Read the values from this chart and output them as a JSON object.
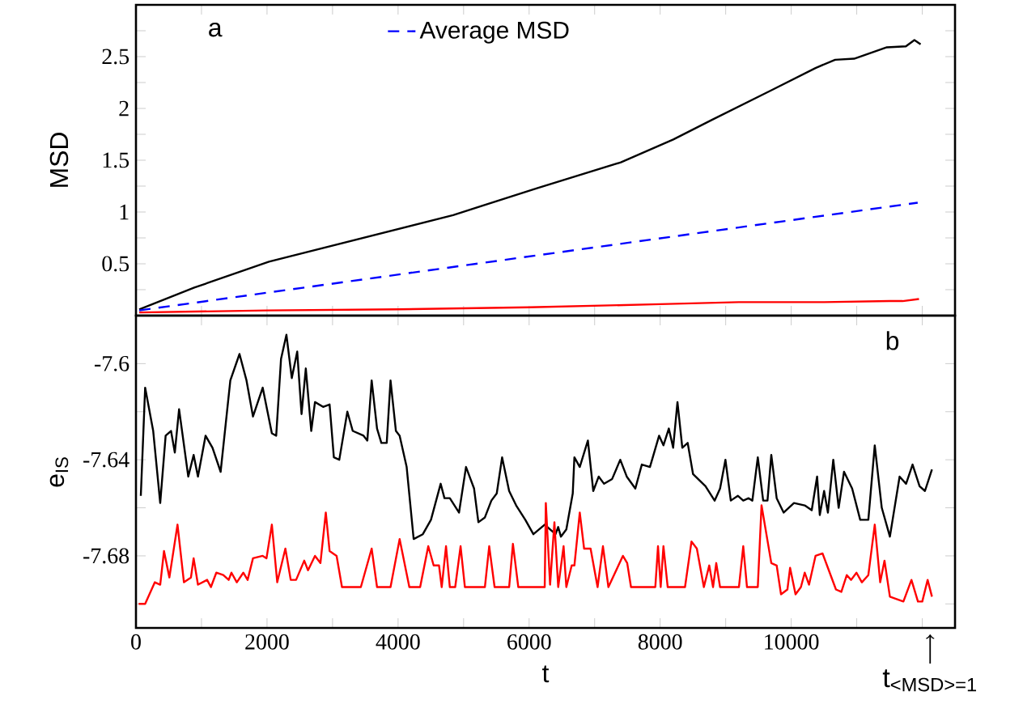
{
  "chart_data": [
    {
      "type": "line",
      "ylabel": "MSD",
      "xlim": [
        0,
        12500
      ],
      "ylim": [
        0,
        3
      ],
      "legend": "top",
      "tick_labels": "y",
      "annotations": [
        "a"
      ],
      "xticks": [
        {
          "value": 0,
          "label": null
        },
        {
          "value": 1000,
          "label": null
        },
        {
          "value": 2000,
          "label": null
        },
        {
          "value": 3000,
          "label": null
        },
        {
          "value": 4000,
          "label": null
        },
        {
          "value": 5000,
          "label": null
        },
        {
          "value": 6000,
          "label": null
        },
        {
          "value": 7000,
          "label": null
        },
        {
          "value": 8000,
          "label": null
        },
        {
          "value": 9000,
          "label": null
        },
        {
          "value": 10000,
          "label": null
        },
        {
          "value": 11000,
          "label": null
        },
        {
          "value": 12000,
          "label": null
        }
      ],
      "yticks": [
        {
          "value": 0.25,
          "label": null
        },
        0.5,
        {
          "value": 0.75,
          "label": null
        },
        1,
        {
          "value": 1.25,
          "label": null
        },
        1.5,
        {
          "value": 1.75,
          "label": null
        },
        2,
        {
          "value": 2.25,
          "label": null
        },
        2.5,
        {
          "value": 2.75,
          "label": null
        }
      ],
      "series": [
        {
          "color": "#000000",
          "line_style": "solid",
          "x": [
            50,
            890,
            2030,
            4840,
            6120,
            7400,
            8200,
            8790,
            9680,
            10370,
            10670,
            10960,
            11460,
            11750,
            11880,
            11975
          ],
          "values": [
            0.06,
            0.27,
            0.52,
            0.97,
            1.23,
            1.48,
            1.7,
            1.89,
            2.17,
            2.39,
            2.47,
            2.48,
            2.59,
            2.6,
            2.66,
            2.62
          ]
        },
        {
          "name": "Average MSD",
          "color": "#0000ff",
          "line_style": "dashed",
          "x": [
            50,
            11930
          ],
          "values": [
            0.05,
            1.09
          ]
        },
        {
          "color": "#ff0000",
          "line_style": "solid",
          "x": [
            50,
            2000,
            4000,
            6000,
            8000,
            9200,
            10500,
            11500,
            11700,
            11950
          ],
          "values": [
            0.03,
            0.05,
            0.06,
            0.08,
            0.11,
            0.13,
            0.13,
            0.14,
            0.14,
            0.16
          ]
        }
      ]
    },
    {
      "type": "line",
      "xlabel": "t",
      "ylabel": "e$_{IS}$",
      "xlim": [
        0,
        12500
      ],
      "ylim": [
        -7.71,
        -7.58
      ],
      "annotations": [
        "b",
        {
          "text": "t$_{<MSD>=1}$",
          "x": 12120
        }
      ],
      "xticks": [
        0,
        {
          "value": 1000,
          "label": null
        },
        2000,
        {
          "value": 3000,
          "label": null
        },
        4000,
        {
          "value": 5000,
          "label": null
        },
        6000,
        {
          "value": 7000,
          "label": null
        },
        8000,
        {
          "value": 9000,
          "label": null
        },
        10000,
        {
          "value": 11000,
          "label": null
        },
        {
          "value": 12000,
          "label": null
        }
      ],
      "yticks": [
        -7.6,
        {
          "value": -7.62,
          "label": null
        },
        -7.64,
        {
          "value": -7.66,
          "label": null
        },
        -7.68,
        {
          "value": -7.7,
          "label": null
        }
      ],
      "series": [
        {
          "color": "#000000",
          "line_style": "solid",
          "x": [
            74,
            140,
            263,
            370,
            453,
            535,
            593,
            658,
            798,
            880,
            946,
            1062,
            1168,
            1292,
            1440,
            1580,
            1687,
            1786,
            1934,
            2074,
            2140,
            2214,
            2296,
            2378,
            2461,
            2527,
            2592,
            2675,
            2732,
            2856,
            2955,
            3020,
            3103,
            3226,
            3308,
            3473,
            3531,
            3597,
            3679,
            3745,
            3827,
            3885,
            3967,
            4024,
            4131,
            4238,
            4378,
            4502,
            4650,
            4708,
            4790,
            4930,
            5037,
            5160,
            5226,
            5325,
            5424,
            5506,
            5588,
            5695,
            5802,
            5942,
            6065,
            6238,
            6403,
            6444,
            6485,
            6568,
            6666,
            6691,
            6773,
            6897,
            6979,
            7062,
            7144,
            7267,
            7391,
            7490,
            7621,
            7720,
            7844,
            7984,
            8050,
            8132,
            8198,
            8264,
            8338,
            8420,
            8502,
            8692,
            8831,
            8914,
            8996,
            9078,
            9185,
            9268,
            9350,
            9407,
            9490,
            9572,
            9638,
            9696,
            9778,
            9885,
            10042,
            10206,
            10313,
            10395,
            10436,
            10502,
            10560,
            10642,
            10724,
            10806,
            10930,
            11053,
            11177,
            11275,
            11382,
            11506,
            11654,
            11753,
            11852,
            11959,
            12041,
            12148
          ],
          "values": [
            -7.655,
            -7.61,
            -7.628,
            -7.658,
            -7.63,
            -7.628,
            -7.637,
            -7.619,
            -7.647,
            -7.638,
            -7.647,
            -7.63,
            -7.635,
            -7.645,
            -7.607,
            -7.596,
            -7.607,
            -7.622,
            -7.61,
            -7.629,
            -7.63,
            -7.598,
            -7.588,
            -7.606,
            -7.595,
            -7.621,
            -7.602,
            -7.628,
            -7.616,
            -7.618,
            -7.617,
            -7.639,
            -7.64,
            -7.62,
            -7.628,
            -7.63,
            -7.632,
            -7.607,
            -7.627,
            -7.633,
            -7.633,
            -7.607,
            -7.628,
            -7.63,
            -7.643,
            -7.673,
            -7.671,
            -7.665,
            -7.65,
            -7.656,
            -7.656,
            -7.662,
            -7.643,
            -7.652,
            -7.666,
            -7.664,
            -7.657,
            -7.654,
            -7.639,
            -7.653,
            -7.659,
            -7.665,
            -7.671,
            -7.667,
            -7.671,
            -7.668,
            -7.672,
            -7.669,
            -7.654,
            -7.639,
            -7.643,
            -7.632,
            -7.653,
            -7.647,
            -7.65,
            -7.648,
            -7.64,
            -7.647,
            -7.652,
            -7.642,
            -7.643,
            -7.63,
            -7.634,
            -7.627,
            -7.635,
            -7.616,
            -7.635,
            -7.633,
            -7.646,
            -7.651,
            -7.657,
            -7.652,
            -7.64,
            -7.657,
            -7.655,
            -7.657,
            -7.656,
            -7.657,
            -7.639,
            -7.657,
            -7.657,
            -7.638,
            -7.656,
            -7.662,
            -7.658,
            -7.659,
            -7.661,
            -7.647,
            -7.663,
            -7.653,
            -7.662,
            -7.64,
            -7.66,
            -7.645,
            -7.652,
            -7.665,
            -7.665,
            -7.634,
            -7.66,
            -7.672,
            -7.647,
            -7.65,
            -7.642,
            -7.651,
            -7.653,
            -7.644
          ]
        },
        {
          "color": "#ff0000",
          "line_style": "solid",
          "x": [
            41,
            140,
            288,
            370,
            428,
            510,
            634,
            732,
            839,
            880,
            946,
            1086,
            1144,
            1226,
            1333,
            1415,
            1457,
            1539,
            1638,
            1704,
            1786,
            1934,
            1992,
            2074,
            2156,
            2280,
            2362,
            2444,
            2568,
            2626,
            2732,
            2815,
            2897,
            2955,
            3062,
            3144,
            3432,
            3597,
            3679,
            3885,
            4024,
            4172,
            4337,
            4461,
            4543,
            4625,
            4666,
            4732,
            4790,
            4872,
            4954,
            5020,
            5325,
            5391,
            5473,
            5695,
            5753,
            5835,
            6238,
            6255,
            6320,
            6386,
            6444,
            6526,
            6568,
            6650,
            6691,
            6773,
            6839,
            6938,
            7045,
            7127,
            7210,
            7431,
            7497,
            7555,
            7926,
            7967,
            8008,
            8050,
            8115,
            8379,
            8478,
            8560,
            8667,
            8749,
            8807,
            8856,
            8914,
            9202,
            9268,
            9325,
            9490,
            9547,
            9696,
            9778,
            9844,
            9942,
            9983,
            10066,
            10148,
            10206,
            10272,
            10371,
            10478,
            10560,
            10683,
            10765,
            10848,
            10914,
            10996,
            11078,
            11177,
            11275,
            11358,
            11424,
            11506,
            11712,
            11835,
            11934,
            12000,
            12082,
            12148
          ],
          "values": [
            -7.7,
            -7.7,
            -7.691,
            -7.692,
            -7.678,
            -7.689,
            -7.667,
            -7.691,
            -7.689,
            -7.681,
            -7.692,
            -7.69,
            -7.693,
            -7.687,
            -7.688,
            -7.69,
            -7.687,
            -7.691,
            -7.687,
            -7.69,
            -7.681,
            -7.68,
            -7.681,
            -7.667,
            -7.691,
            -7.677,
            -7.69,
            -7.69,
            -7.682,
            -7.686,
            -7.68,
            -7.683,
            -7.662,
            -7.678,
            -7.68,
            -7.693,
            -7.693,
            -7.677,
            -7.693,
            -7.693,
            -7.673,
            -7.693,
            -7.693,
            -7.676,
            -7.684,
            -7.684,
            -7.693,
            -7.676,
            -7.693,
            -7.693,
            -7.676,
            -7.693,
            -7.693,
            -7.676,
            -7.693,
            -7.693,
            -7.675,
            -7.693,
            -7.693,
            -7.658,
            -7.692,
            -7.666,
            -7.693,
            -7.676,
            -7.693,
            -7.684,
            -7.684,
            -7.662,
            -7.677,
            -7.677,
            -7.693,
            -7.676,
            -7.693,
            -7.68,
            -7.683,
            -7.693,
            -7.693,
            -7.676,
            -7.693,
            -7.676,
            -7.693,
            -7.693,
            -7.674,
            -7.677,
            -7.693,
            -7.684,
            -7.693,
            -7.683,
            -7.693,
            -7.693,
            -7.676,
            -7.693,
            -7.693,
            -7.659,
            -7.683,
            -7.684,
            -7.696,
            -7.694,
            -7.685,
            -7.696,
            -7.693,
            -7.687,
            -7.692,
            -7.68,
            -7.679,
            -7.685,
            -7.694,
            -7.695,
            -7.688,
            -7.69,
            -7.687,
            -7.691,
            -7.688,
            -7.667,
            -7.691,
            -7.682,
            -7.697,
            -7.699,
            -7.69,
            -7.699,
            -7.699,
            -7.69,
            -7.697
          ]
        }
      ]
    }
  ]
}
